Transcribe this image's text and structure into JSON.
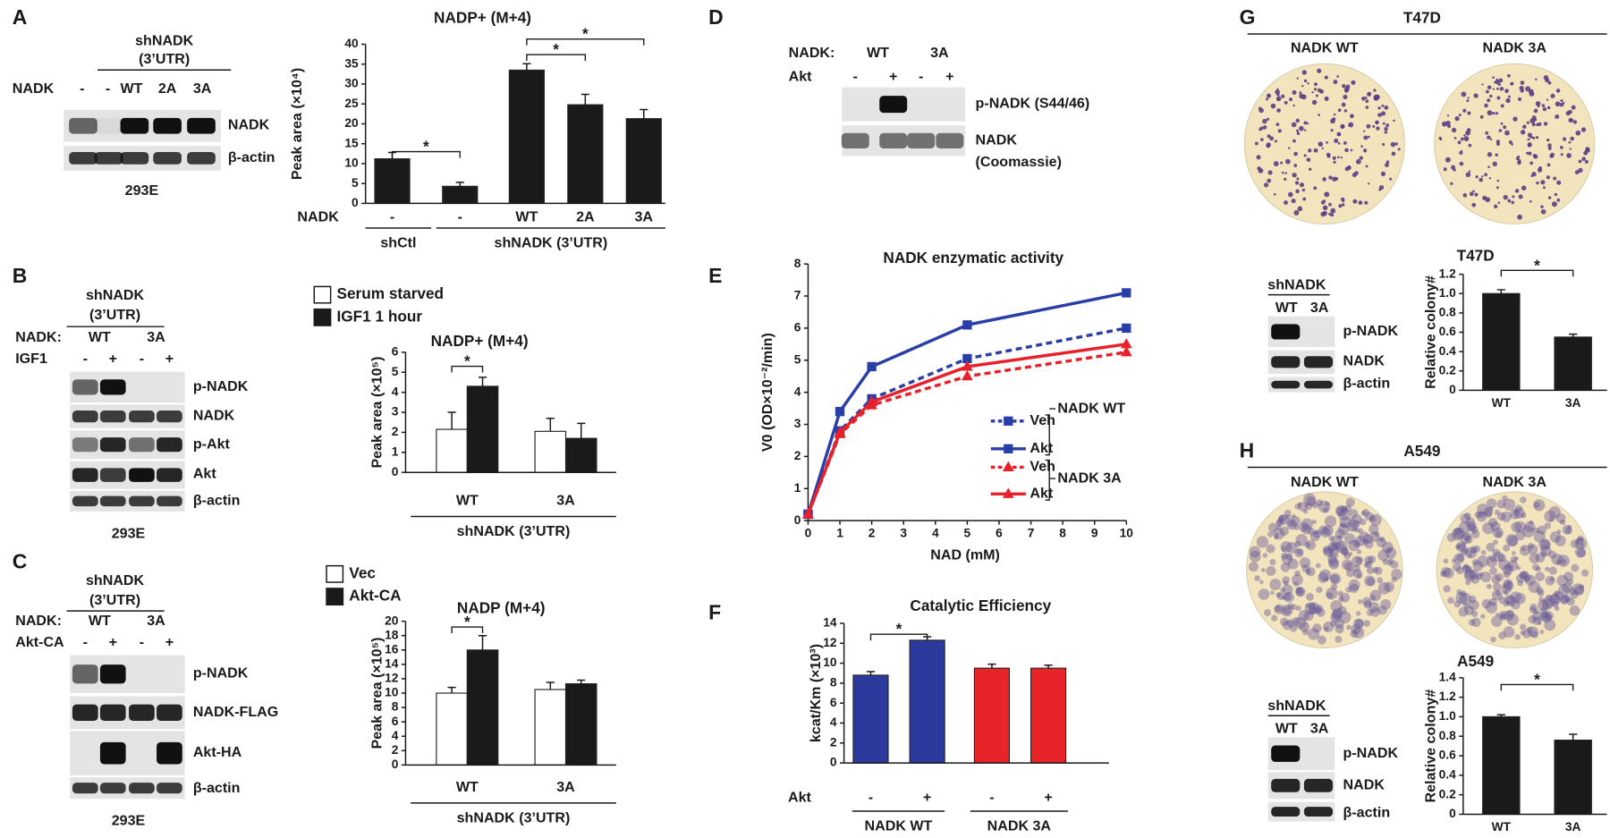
{
  "panels": [
    "A",
    "B",
    "C",
    "D",
    "E",
    "F",
    "G",
    "H"
  ],
  "blots": [
    {
      "header": [
        "shNADK",
        "(3’UTR)"
      ],
      "lane_rows": [
        {
          "label": "NADK",
          "lanes": [
            "-",
            "-",
            "WT",
            "2A",
            "3A"
          ]
        }
      ],
      "bands": [
        "NADK",
        "β-actin"
      ],
      "cell": "293E"
    },
    {
      "header": [
        "shNADK",
        "(3’UTR)"
      ],
      "lane_rows": [
        {
          "label": "NADK:",
          "lanes": [
            "WT",
            "3A"
          ]
        },
        {
          "label": "IGF1",
          "lanes": [
            "-",
            "+",
            "-",
            "+"
          ]
        }
      ],
      "bands": [
        "p-NADK",
        "NADK",
        "p-Akt",
        "Akt",
        "β-actin"
      ],
      "cell": "293E"
    },
    {
      "header": [
        "shNADK",
        "(3’UTR)"
      ],
      "lane_rows": [
        {
          "label": "NADK:",
          "lanes": [
            "WT",
            "3A"
          ]
        },
        {
          "label": "Akt-CA",
          "lanes": [
            "-",
            "+",
            "-",
            "+"
          ]
        }
      ],
      "bands": [
        "p-NADK",
        "NADK-FLAG",
        "Akt-HA",
        "β-actin"
      ],
      "cell": "293E"
    },
    {
      "lane_rows": [
        {
          "label": "NADK:",
          "lanes": [
            "WT",
            "3A"
          ]
        },
        {
          "label": "Akt",
          "lanes": [
            "-",
            "+",
            "-",
            "+"
          ]
        }
      ],
      "bands": [
        "p-NADK (S44/46)",
        "NADK",
        "(Coomassie)"
      ]
    },
    {
      "header": [
        "shNADK"
      ],
      "lane_rows": [
        {
          "lanes": [
            "WT",
            "3A"
          ]
        }
      ],
      "bands": [
        "p-NADK",
        "NADK",
        "β-actin"
      ]
    },
    {
      "header": [
        "shNADK"
      ],
      "lane_rows": [
        {
          "lanes": [
            "WT",
            "3A"
          ]
        }
      ],
      "bands": [
        "p-NADK",
        "NADK",
        "β-actin"
      ]
    }
  ],
  "colonies": [
    {
      "title": "T47D",
      "labels": [
        "NADK WT",
        "NADK 3A"
      ]
    },
    {
      "title": "A549",
      "labels": [
        "NADK WT",
        "NADK 3A"
      ]
    }
  ],
  "chart_data": [
    {
      "type": "bar",
      "title": "NADP+ (M+4)",
      "ylabel": "Peak area (×10⁴)",
      "row_label": "NADK",
      "categories": [
        "-",
        "-",
        "WT",
        "2A",
        "3A"
      ],
      "groups": [
        "shCtl",
        "shNADK (3’UTR)"
      ],
      "series": [
        {
          "color": "#1a1a1a",
          "values": [
            11.2,
            4.3,
            33.5,
            24.8,
            21.3
          ],
          "errors": [
            1.6,
            1.0,
            1.6,
            2.6,
            2.3
          ]
        }
      ],
      "ylim": [
        0,
        40
      ],
      "yticks": [
        0,
        5,
        10,
        15,
        20,
        25,
        30,
        35,
        40
      ],
      "annotations": [
        "*",
        "*",
        "*"
      ]
    },
    {
      "type": "bar",
      "title": "NADP+ (M+4)",
      "ylabel": "Peak area (×10⁵)",
      "categories": [
        "WT",
        "3A"
      ],
      "groups": [
        "shNADK (3’UTR)"
      ],
      "series": [
        {
          "name": "Serum starved",
          "color": "#ffffff",
          "values": [
            2.15,
            2.05
          ],
          "errors": [
            0.85,
            0.65
          ]
        },
        {
          "name": "IGF1 1 hour",
          "color": "#1a1a1a",
          "values": [
            4.3,
            1.7
          ],
          "errors": [
            0.45,
            0.75
          ]
        }
      ],
      "ylim": [
        0,
        6
      ],
      "yticks": [
        0,
        1,
        2,
        3,
        4,
        5,
        6
      ],
      "annotations": [
        "*"
      ]
    },
    {
      "type": "bar",
      "title": "NADP (M+4)",
      "ylabel": "Peak area (×10⁵)",
      "categories": [
        "WT",
        "3A"
      ],
      "groups": [
        "shNADK (3’UTR)"
      ],
      "series": [
        {
          "name": "Vec",
          "color": "#ffffff",
          "values": [
            10,
            10.5
          ],
          "errors": [
            0.8,
            1.0
          ]
        },
        {
          "name": "Akt-CA",
          "color": "#1a1a1a",
          "values": [
            16,
            11.3
          ],
          "errors": [
            2.0,
            0.5
          ]
        }
      ],
      "ylim": [
        0,
        20
      ],
      "yticks": [
        0,
        2,
        4,
        6,
        8,
        10,
        12,
        14,
        16,
        18,
        20
      ],
      "annotations": [
        "*"
      ]
    },
    {
      "type": "line",
      "title": "NADK enzymatic activity",
      "xlabel": "NAD (mM)",
      "ylabel": "V0 (OD×10⁻²/min)",
      "x": [
        0,
        1,
        2,
        5,
        10
      ],
      "xlim": [
        0,
        10
      ],
      "xticks": [
        0,
        1,
        2,
        3,
        4,
        5,
        6,
        7,
        8,
        9,
        10
      ],
      "ylim": [
        0,
        8
      ],
      "yticks": [
        0,
        1,
        2,
        3,
        4,
        5,
        6,
        7,
        8
      ],
      "legend_groups": [
        "NADK WT",
        "NADK 3A"
      ],
      "series": [
        {
          "name": "Veh",
          "color": "#2a3ea8",
          "line_style": "dashed",
          "marker": "square",
          "values": [
            0.2,
            2.8,
            3.8,
            5.05,
            6.0
          ]
        },
        {
          "name": "Akt",
          "color": "#2a3ea8",
          "line_style": "solid",
          "marker": "square",
          "values": [
            0.2,
            3.4,
            4.8,
            6.1,
            7.1
          ]
        },
        {
          "name": "Veh",
          "color": "#e8202a",
          "line_style": "dashed",
          "marker": "triangle",
          "values": [
            0.2,
            2.7,
            3.6,
            4.5,
            5.25
          ]
        },
        {
          "name": "Akt",
          "color": "#e8202a",
          "line_style": "solid",
          "marker": "triangle",
          "values": [
            0.2,
            2.75,
            3.7,
            4.8,
            5.5
          ]
        }
      ]
    },
    {
      "type": "bar",
      "title": "Catalytic Efficiency",
      "ylabel": "kcat/Km (×10³)",
      "row_label": "Akt",
      "categories": [
        "-",
        "+",
        "-",
        "+"
      ],
      "groups": [
        "NADK WT",
        "NADK 3A"
      ],
      "series": [
        {
          "colors": [
            "#2b3a9c",
            "#2b3a9c",
            "#e8232a",
            "#e8232a"
          ],
          "values": [
            8.8,
            12.3,
            9.5,
            9.5
          ],
          "errors": [
            0.35,
            0.35,
            0.4,
            0.3
          ]
        }
      ],
      "ylim": [
        0,
        14
      ],
      "yticks": [
        0,
        2,
        4,
        6,
        8,
        10,
        12,
        14
      ],
      "annotations": [
        "*"
      ]
    },
    {
      "type": "bar",
      "title": "T47D",
      "ylabel": "Relative colony#",
      "categories": [
        "WT",
        "3A"
      ],
      "series": [
        {
          "color": "#1a1a1a",
          "values": [
            1.0,
            0.55
          ],
          "errors": [
            0.04,
            0.03
          ]
        }
      ],
      "ylim": [
        0,
        1.2
      ],
      "yticks": [
        0,
        0.2,
        0.4,
        0.6,
        0.8,
        {
          "value": 1,
          "label": "1.0"
        },
        1.2
      ],
      "annotations": [
        "*"
      ]
    },
    {
      "type": "bar",
      "title": "A549",
      "ylabel": "Relative colony#",
      "categories": [
        "WT",
        "3A"
      ],
      "series": [
        {
          "color": "#1a1a1a",
          "values": [
            1.0,
            0.76
          ],
          "errors": [
            0.02,
            0.06
          ]
        }
      ],
      "ylim": [
        0,
        1.4
      ],
      "yticks": [
        0,
        0.2,
        0.4,
        0.6,
        0.8,
        {
          "value": 1,
          "label": "1.0"
        },
        1.2,
        1.4
      ],
      "annotations": [
        "*"
      ]
    }
  ]
}
